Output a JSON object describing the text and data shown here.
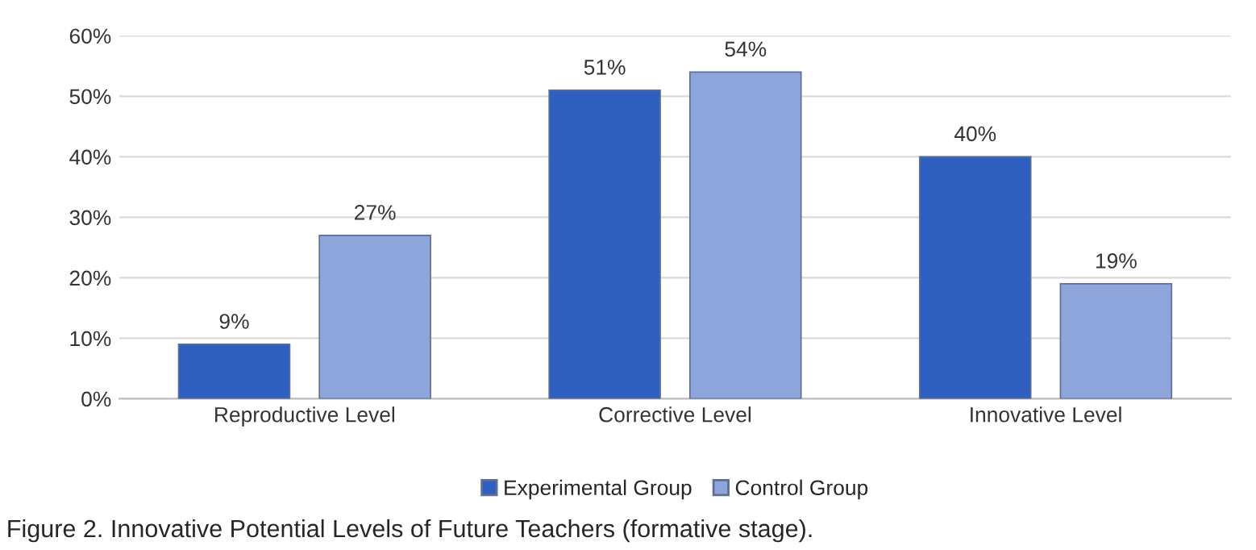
{
  "chart_data": {
    "type": "bar",
    "categories": [
      "Reproductive Level",
      "Corrective Level",
      "Innovative Level"
    ],
    "series": [
      {
        "name": "Experimental Group",
        "color": "#2f5fc0",
        "values": [
          9,
          51,
          40
        ],
        "value_labels": [
          "9%",
          "51%",
          "40%"
        ]
      },
      {
        "name": "Control Group",
        "color": "#8ea5dc",
        "values": [
          27,
          54,
          19
        ],
        "value_labels": [
          "27%",
          "54%",
          "19%"
        ]
      }
    ],
    "ylim": [
      0,
      60
    ],
    "yticks": [
      {
        "value": 0,
        "label": "0%"
      },
      {
        "value": 10,
        "label": "10%"
      },
      {
        "value": 20,
        "label": "20%"
      },
      {
        "value": 30,
        "label": "30%"
      },
      {
        "value": 40,
        "label": "40%"
      },
      {
        "value": 50,
        "label": "50%"
      },
      {
        "value": 60,
        "label": "60%"
      }
    ],
    "grid": "y",
    "legend": "bottom",
    "annotations": [
      "Figure 2. Innovative Potential Levels of Future Teachers (formative stage)."
    ]
  }
}
